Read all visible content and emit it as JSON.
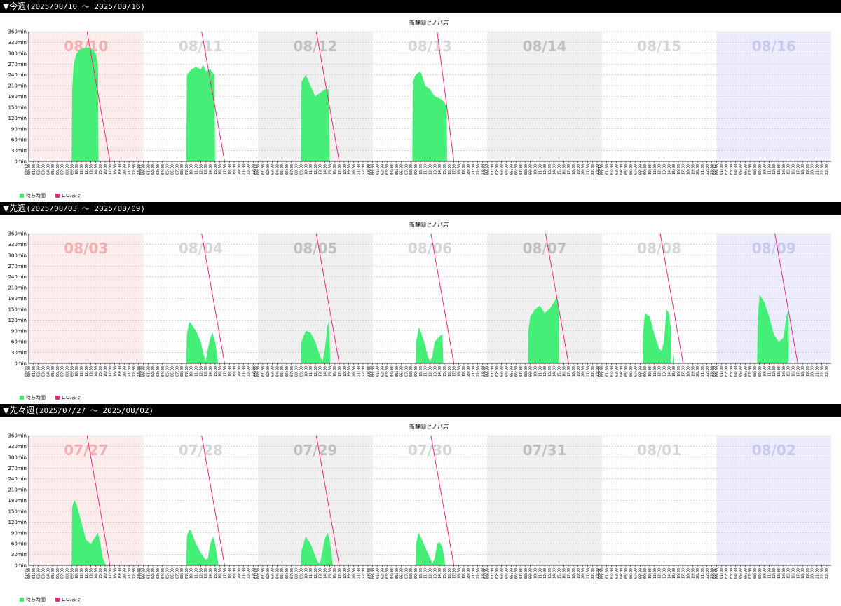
{
  "colors": {
    "wait_fill": "#44ee77",
    "line": "#e8307a",
    "sunday_bg": "#fdecec",
    "saturday_bg": "#ececfd",
    "weekday_alt_bg": "#f0f0f0",
    "header_bg": "#000000",
    "grid": "#bbbbbb",
    "day_label_sun": "#f4b0b0",
    "day_label_sat": "#c8c8f0",
    "day_label_weekday_light": "#d6d6d6",
    "day_label_weekday_dark": "#c0c0c0"
  },
  "legend": {
    "wait_label": "待ち時間",
    "line_label": "L.O.まで"
  },
  "chart_data": [
    {
      "type": "area",
      "section_title": "▼今週",
      "date_range": "(2025/08/10 〜 2025/08/16)",
      "title": "新静岡セノバ店",
      "ylim": [
        0,
        360
      ],
      "yticks": [
        "0min",
        "30min",
        "60min",
        "90min",
        "120min",
        "150min",
        "180min",
        "210min",
        "240min",
        "270min",
        "300min",
        "330min",
        "360min"
      ],
      "hour_ticks": [
        "00:00",
        "01:00",
        "02:00",
        "03:00",
        "04:00",
        "05:00",
        "06:00",
        "07:00",
        "08:00",
        "09:00",
        "10:00",
        "11:00",
        "12:00",
        "13:00",
        "14:00",
        "15:00",
        "16:00",
        "17:00",
        "18:00",
        "19:00",
        "20:00",
        "21:00",
        "22:00",
        "23:00"
      ],
      "grid": true,
      "legend_position": "bottom-left",
      "days": [
        {
          "label": "08/10",
          "date_tick": "08/10",
          "bg": "sun",
          "wait": [
            [
              9,
              0
            ],
            [
              9.1,
              200
            ],
            [
              9.4,
              270
            ],
            [
              10,
              300
            ],
            [
              11,
              312
            ],
            [
              12,
              316
            ],
            [
              13,
              315
            ],
            [
              14,
              300
            ],
            [
              14.5,
              270
            ],
            [
              14.6,
              0
            ]
          ],
          "lo": [
            [
              12.2,
              360
            ],
            [
              17,
              0
            ]
          ]
        },
        {
          "label": "08/11",
          "date_tick": "08/11",
          "bg": "none",
          "wait": [
            [
              9,
              0
            ],
            [
              9.1,
              240
            ],
            [
              10,
              255
            ],
            [
              11,
              262
            ],
            [
              12,
              255
            ],
            [
              12.5,
              268
            ],
            [
              13,
              250
            ],
            [
              14,
              255
            ],
            [
              14.9,
              240
            ],
            [
              15,
              0
            ]
          ],
          "lo": [
            [
              12.2,
              360
            ],
            [
              17,
              0
            ]
          ]
        },
        {
          "label": "08/12",
          "date_tick": "08/12",
          "bg": "wk",
          "wait": [
            [
              9,
              0
            ],
            [
              9.1,
              220
            ],
            [
              10,
              240
            ],
            [
              11,
              210
            ],
            [
              12,
              180
            ],
            [
              13,
              190
            ],
            [
              14,
              200
            ],
            [
              14.9,
              200
            ],
            [
              15,
              0
            ]
          ],
          "lo": [
            [
              12.2,
              360
            ],
            [
              17,
              0
            ]
          ]
        },
        {
          "label": "08/13",
          "date_tick": "08/13",
          "bg": "none",
          "wait": [
            [
              8.3,
              0
            ],
            [
              8.4,
              220
            ],
            [
              9,
              240
            ],
            [
              10,
              250
            ],
            [
              11,
              210
            ],
            [
              12,
              200
            ],
            [
              13,
              180
            ],
            [
              14,
              175
            ],
            [
              15,
              165
            ],
            [
              15.5,
              150
            ],
            [
              15.6,
              0
            ]
          ],
          "lo": [
            [
              13.5,
              360
            ],
            [
              17,
              0
            ]
          ]
        },
        {
          "label": "08/14",
          "date_tick": "08/14",
          "bg": "wk",
          "wait": [],
          "lo": []
        },
        {
          "label": "08/15",
          "date_tick": "08/15",
          "bg": "none",
          "wait": [],
          "lo": []
        },
        {
          "label": "08/16",
          "date_tick": "08/16",
          "bg": "sat",
          "wait": [],
          "lo": []
        }
      ]
    },
    {
      "type": "area",
      "section_title": "▼先週",
      "date_range": "(2025/08/03 〜 2025/08/09)",
      "title": "新静岡セノバ店",
      "ylim": [
        0,
        360
      ],
      "yticks": [
        "0min",
        "30min",
        "60min",
        "90min",
        "120min",
        "150min",
        "180min",
        "210min",
        "240min",
        "270min",
        "300min",
        "330min",
        "360min"
      ],
      "hour_ticks": [
        "00:00",
        "01:00",
        "02:00",
        "03:00",
        "04:00",
        "05:00",
        "06:00",
        "07:00",
        "08:00",
        "09:00",
        "10:00",
        "11:00",
        "12:00",
        "13:00",
        "14:00",
        "15:00",
        "16:00",
        "17:00",
        "18:00",
        "19:00",
        "20:00",
        "21:00",
        "22:00",
        "23:00"
      ],
      "grid": true,
      "legend_position": "bottom-left",
      "days": [
        {
          "label": "08/03",
          "date_tick": "08/03",
          "bg": "sun",
          "wait": [],
          "lo": []
        },
        {
          "label": "08/04",
          "date_tick": "08/04",
          "bg": "none",
          "wait": [
            [
              9,
              0
            ],
            [
              9.1,
              80
            ],
            [
              9.6,
              115
            ],
            [
              10,
              110
            ],
            [
              11,
              90
            ],
            [
              12,
              60
            ],
            [
              12.7,
              20
            ],
            [
              13,
              5
            ],
            [
              13.5,
              40
            ],
            [
              14,
              70
            ],
            [
              14.5,
              85
            ],
            [
              15,
              60
            ],
            [
              15.5,
              20
            ],
            [
              15.6,
              0
            ]
          ],
          "lo": [
            [
              12.2,
              360
            ],
            [
              17,
              0
            ]
          ]
        },
        {
          "label": "08/05",
          "date_tick": "08/05",
          "bg": "wk",
          "wait": [
            [
              9,
              0
            ],
            [
              9.1,
              60
            ],
            [
              10,
              90
            ],
            [
              11,
              85
            ],
            [
              12,
              60
            ],
            [
              12.5,
              40
            ],
            [
              13,
              20
            ],
            [
              13.5,
              5
            ],
            [
              14,
              40
            ],
            [
              14.5,
              100
            ],
            [
              14.9,
              120
            ],
            [
              15.1,
              0
            ]
          ],
          "lo": [
            [
              12.2,
              360
            ],
            [
              17,
              0
            ]
          ]
        },
        {
          "label": "08/06",
          "date_tick": "08/06",
          "bg": "none",
          "wait": [
            [
              9,
              0
            ],
            [
              9.1,
              60
            ],
            [
              9.7,
              100
            ],
            [
              10,
              90
            ],
            [
              11,
              50
            ],
            [
              11.5,
              20
            ],
            [
              12,
              5
            ],
            [
              12.5,
              20
            ],
            [
              13,
              60
            ],
            [
              14,
              75
            ],
            [
              14.6,
              80
            ],
            [
              14.8,
              0
            ]
          ],
          "lo": [
            [
              12.2,
              360
            ],
            [
              17,
              0
            ]
          ]
        },
        {
          "label": "08/07",
          "date_tick": "08/07",
          "bg": "wk",
          "wait": [
            [
              8.5,
              0
            ],
            [
              8.6,
              90
            ],
            [
              9,
              130
            ],
            [
              10,
              150
            ],
            [
              11,
              160
            ],
            [
              12,
              140
            ],
            [
              13,
              150
            ],
            [
              14,
              170
            ],
            [
              14.6,
              185
            ],
            [
              15,
              150
            ],
            [
              15.1,
              0
            ]
          ],
          "lo": [
            [
              12.2,
              360
            ],
            [
              17,
              0
            ]
          ]
        },
        {
          "label": "08/08",
          "date_tick": "08/08",
          "bg": "none",
          "wait": [
            [
              8.5,
              0
            ],
            [
              8.6,
              80
            ],
            [
              9,
              140
            ],
            [
              10,
              130
            ],
            [
              11,
              80
            ],
            [
              12,
              40
            ],
            [
              12.5,
              35
            ],
            [
              13,
              60
            ],
            [
              13.5,
              150
            ],
            [
              14,
              140
            ],
            [
              14.4,
              100
            ],
            [
              14.5,
              0
            ],
            [
              14.8,
              0
            ],
            [
              14.9,
              30
            ],
            [
              15,
              0
            ]
          ],
          "lo": [
            [
              12.2,
              360
            ],
            [
              17,
              0
            ]
          ]
        },
        {
          "label": "08/09",
          "date_tick": "08/09",
          "bg": "sat",
          "wait": [
            [
              8.5,
              0
            ],
            [
              8.6,
              120
            ],
            [
              9,
              190
            ],
            [
              10,
              170
            ],
            [
              11,
              130
            ],
            [
              12,
              80
            ],
            [
              13,
              60
            ],
            [
              14,
              70
            ],
            [
              14.5,
              120
            ],
            [
              15,
              150
            ],
            [
              15.1,
              0
            ]
          ],
          "lo": [
            [
              12.2,
              360
            ],
            [
              17,
              0
            ]
          ]
        }
      ]
    },
    {
      "type": "area",
      "section_title": "▼先々週",
      "date_range": "(2025/07/27 〜 2025/08/02)",
      "title": "新静岡セノバ店",
      "ylim": [
        0,
        360
      ],
      "yticks": [
        "0min",
        "30min",
        "60min",
        "90min",
        "120min",
        "150min",
        "180min",
        "210min",
        "240min",
        "270min",
        "300min",
        "330min",
        "360min"
      ],
      "hour_ticks": [
        "00:00",
        "01:00",
        "02:00",
        "03:00",
        "04:00",
        "05:00",
        "06:00",
        "07:00",
        "08:00",
        "09:00",
        "10:00",
        "11:00",
        "12:00",
        "13:00",
        "14:00",
        "15:00",
        "16:00",
        "17:00",
        "18:00",
        "19:00",
        "20:00",
        "21:00",
        "22:00",
        "23:00"
      ],
      "grid": true,
      "legend_position": "bottom-left",
      "days": [
        {
          "label": "07/27",
          "date_tick": "07/27",
          "bg": "sun",
          "wait": [
            [
              9,
              0
            ],
            [
              9.1,
              160
            ],
            [
              9.5,
              180
            ],
            [
              10,
              170
            ],
            [
              11,
              120
            ],
            [
              12,
              70
            ],
            [
              13,
              60
            ],
            [
              14,
              80
            ],
            [
              14.5,
              90
            ],
            [
              15,
              60
            ],
            [
              15.5,
              20
            ],
            [
              16,
              5
            ],
            [
              16.3,
              0
            ]
          ],
          "lo": [
            [
              12.2,
              360
            ],
            [
              17,
              0
            ]
          ]
        },
        {
          "label": "07/28",
          "date_tick": "07/28",
          "bg": "none",
          "wait": [
            [
              9,
              0
            ],
            [
              9.1,
              80
            ],
            [
              9.6,
              100
            ],
            [
              10,
              95
            ],
            [
              11,
              60
            ],
            [
              12,
              35
            ],
            [
              13,
              15
            ],
            [
              13.5,
              20
            ],
            [
              14,
              60
            ],
            [
              14.6,
              80
            ],
            [
              15,
              60
            ],
            [
              15.5,
              20
            ],
            [
              15.7,
              0
            ]
          ],
          "lo": [
            [
              12.2,
              360
            ],
            [
              17,
              0
            ]
          ]
        },
        {
          "label": "07/29",
          "date_tick": "07/29",
          "bg": "wk",
          "wait": [
            [
              9,
              0
            ],
            [
              9.1,
              40
            ],
            [
              10,
              80
            ],
            [
              11,
              60
            ],
            [
              12,
              25
            ],
            [
              12.5,
              10
            ],
            [
              13,
              5
            ],
            [
              13.5,
              40
            ],
            [
              14,
              75
            ],
            [
              14.6,
              90
            ],
            [
              15,
              70
            ],
            [
              15.5,
              20
            ],
            [
              15.7,
              0
            ]
          ],
          "lo": [
            [
              12.2,
              360
            ],
            [
              17,
              0
            ]
          ]
        },
        {
          "label": "07/30",
          "date_tick": "07/30",
          "bg": "none",
          "wait": [
            [
              9,
              0
            ],
            [
              9.1,
              60
            ],
            [
              9.6,
              90
            ],
            [
              10,
              80
            ],
            [
              11,
              50
            ],
            [
              12,
              20
            ],
            [
              12.5,
              5
            ],
            [
              13,
              20
            ],
            [
              13.5,
              60
            ],
            [
              14,
              65
            ],
            [
              14.6,
              50
            ],
            [
              15,
              20
            ],
            [
              15.2,
              0
            ]
          ],
          "lo": [
            [
              12.2,
              360
            ],
            [
              17,
              0
            ]
          ]
        },
        {
          "label": "07/31",
          "date_tick": "07/31",
          "bg": "wk",
          "wait": [],
          "lo": []
        },
        {
          "label": "08/01",
          "date_tick": "08/01",
          "bg": "none",
          "wait": [],
          "lo": []
        },
        {
          "label": "08/02",
          "date_tick": "08/02",
          "bg": "sat",
          "wait": [],
          "lo": []
        }
      ]
    }
  ]
}
